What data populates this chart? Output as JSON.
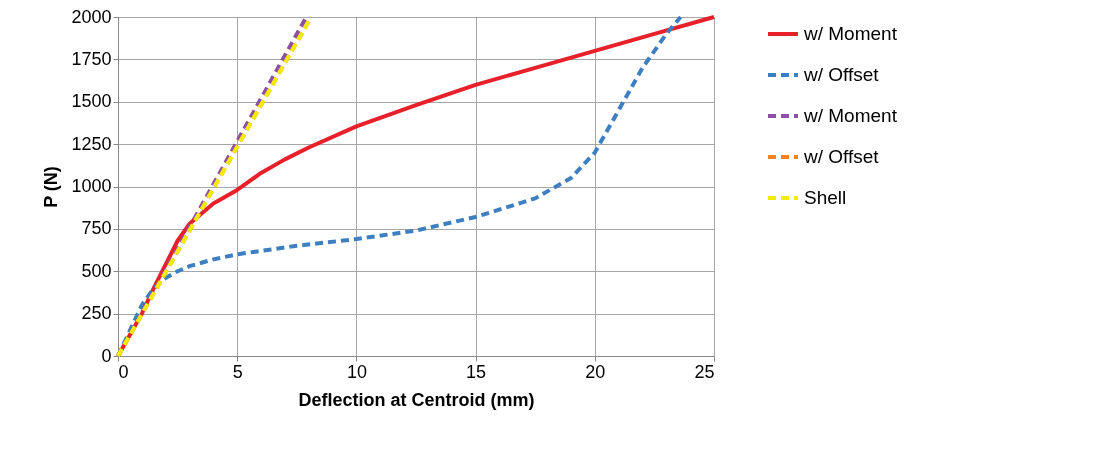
{
  "chart_data": {
    "type": "line",
    "xlabel": "Deflection at Centroid (mm)",
    "ylabel": "P (N)",
    "xlim": [
      0,
      25
    ],
    "ylim": [
      0,
      2000
    ],
    "xticks": [
      0,
      5,
      10,
      15,
      20,
      25
    ],
    "yticks": [
      0,
      250,
      500,
      750,
      1000,
      1250,
      1500,
      1750,
      2000
    ],
    "grid": true,
    "legend": "right",
    "marker": "none",
    "series": [
      {
        "name": "w/ Moment",
        "color": "#e8202a",
        "line_style": "solid",
        "x": [
          0,
          1,
          1.5,
          2,
          2.5,
          3,
          4,
          5,
          6,
          7,
          8,
          10,
          12.5,
          15,
          17.5,
          20,
          22.5,
          25
        ],
        "values": [
          0,
          250,
          400,
          540,
          680,
          780,
          900,
          980,
          1080,
          1160,
          1230,
          1355,
          1480,
          1600,
          1700,
          1800,
          1900,
          2000
        ]
      },
      {
        "name": "w/ Offset",
        "color": "#3d7fc1",
        "line_style": "dashed",
        "x": [
          0,
          1,
          1.5,
          2,
          2.5,
          3,
          4,
          5,
          7.5,
          10,
          12.5,
          15,
          17.5,
          19,
          20,
          21,
          22,
          23,
          23.6
        ],
        "values": [
          0,
          300,
          400,
          460,
          500,
          530,
          570,
          600,
          650,
          690,
          740,
          820,
          930,
          1050,
          1200,
          1450,
          1700,
          1900,
          2000
        ]
      },
      {
        "name": "w/ Moment",
        "color": "#8e4fa6",
        "line_style": "dashed",
        "x": [
          0,
          7.9
        ],
        "values": [
          0,
          2000
        ]
      },
      {
        "name": "w/ Offset",
        "color": "#f58220",
        "line_style": "dashed",
        "x": [
          0,
          8.1
        ],
        "values": [
          0,
          2000
        ]
      },
      {
        "name": "Shell",
        "color": "#f2ec00",
        "line_style": "dashed",
        "x": [
          0,
          8.1
        ],
        "values": [
          0,
          2000
        ]
      }
    ]
  }
}
